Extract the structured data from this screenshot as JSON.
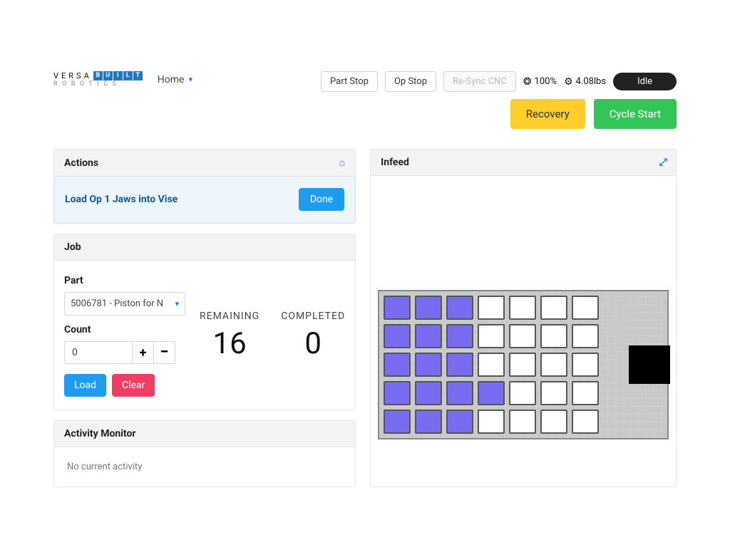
{
  "brand": {
    "versa": "VERSA",
    "built": [
      "B",
      "U",
      "I",
      "L",
      "T"
    ],
    "robotics": "ROBOTICS"
  },
  "nav": {
    "home": "Home"
  },
  "topbar": {
    "part_stop": "Part Stop",
    "op_stop": "Op Stop",
    "resync": "Re-Sync CNC",
    "speed_value": "100%",
    "weight_value": "4.08lbs",
    "status": "Idle",
    "recovery": "Recovery",
    "cycle_start": "Cycle Start"
  },
  "actions": {
    "title": "Actions",
    "item": "Load Op 1 Jaws into Vise",
    "done": "Done"
  },
  "job": {
    "title": "Job",
    "part_label": "Part",
    "part_value": "5006781 - Piston for N",
    "count_label": "Count",
    "count_value": "0",
    "load": "Load",
    "clear": "Clear",
    "remaining_label": "REMAINING",
    "remaining_value": "16",
    "completed_label": "COMPLETED",
    "completed_value": "0"
  },
  "activity": {
    "title": "Activity Monitor",
    "text": "No current activity"
  },
  "infeed": {
    "title": "Infeed",
    "grid": {
      "rows": 5,
      "cols": 7,
      "cell_filled_color": "#7a6cf0",
      "cell_empty_color": "#ffffff",
      "cell_border_color": "#555555",
      "bg_grid_color": "#c9c9c9",
      "side_block_color": "#000000",
      "cells": [
        [
          1,
          1,
          1,
          0,
          0,
          0,
          0
        ],
        [
          1,
          1,
          1,
          0,
          0,
          0,
          0
        ],
        [
          1,
          1,
          1,
          0,
          0,
          0,
          0
        ],
        [
          1,
          1,
          1,
          1,
          0,
          0,
          0
        ],
        [
          1,
          1,
          1,
          0,
          0,
          0,
          0
        ]
      ]
    }
  },
  "colors": {
    "primary_blue": "#1f9ced",
    "warn_yellow": "#ffce2b",
    "success_green": "#34c559",
    "danger_pink": "#ef3e63",
    "status_bg": "#222222"
  }
}
